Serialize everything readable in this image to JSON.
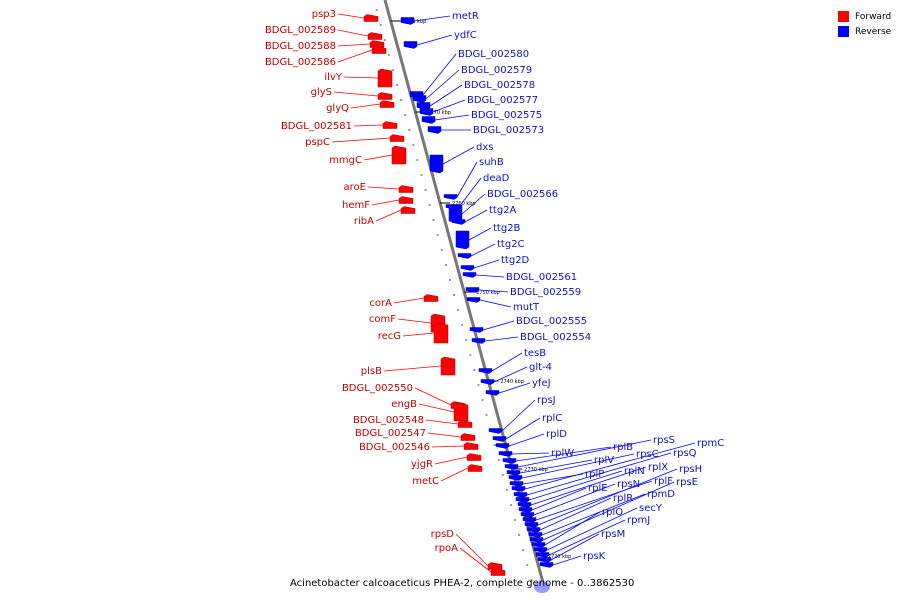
{
  "legend": {
    "forward_label": "Forward",
    "reverse_label": "Reverse",
    "forward_color": "#ff0000",
    "reverse_color": "#0000ff"
  },
  "caption": "Acinetobacter calcoaceticus PHEA-2, complete genome - 0..3862530",
  "ticks": [
    "2780 kbp",
    "2770 kbp",
    "2760 kbp",
    "2750 kbp",
    "2740 kbp",
    "2730 kbp",
    "2720 kbp"
  ],
  "forward_genes": [
    "psp3",
    "BDGL_002589",
    "BDGL_002588",
    "BDGL_002586",
    "ilvY",
    "glyS",
    "glyQ",
    "BDGL_002581",
    "pspC",
    "mmgC",
    "aroE",
    "hemF",
    "ribA",
    "corA",
    "comF",
    "recG",
    "plsB",
    "BDGL_002550",
    "engB",
    "BDGL_002548",
    "BDGL_002547",
    "BDGL_002546",
    "yjgR",
    "metC",
    "rpsD",
    "rpoA"
  ],
  "reverse_genes": [
    "metR",
    "ydfC",
    "BDGL_002580",
    "BDGL_002579",
    "BDGL_002578",
    "BDGL_002577",
    "BDGL_002575",
    "BDGL_002573",
    "dxs",
    "suhB",
    "deaD",
    "BDGL_002566",
    "ttg2A",
    "ttg2B",
    "ttg2C",
    "ttg2D",
    "BDGL_002561",
    "BDGL_002559",
    "mutT",
    "BDGL_002555",
    "BDGL_002554",
    "tesB",
    "glt-4",
    "yfeJ",
    "rpsJ",
    "rplC",
    "rplD",
    "rplW",
    "rplB",
    "rpsS",
    "rplV",
    "rpsC",
    "rplP",
    "rpmC",
    "rpsQ",
    "rplN",
    "rplX",
    "rplE",
    "rpsN",
    "rplF",
    "rpsH",
    "rplR",
    "rpmD",
    "rpsE",
    "rplO",
    "secY",
    "rpmJ",
    "rpsM",
    "rpsK"
  ]
}
